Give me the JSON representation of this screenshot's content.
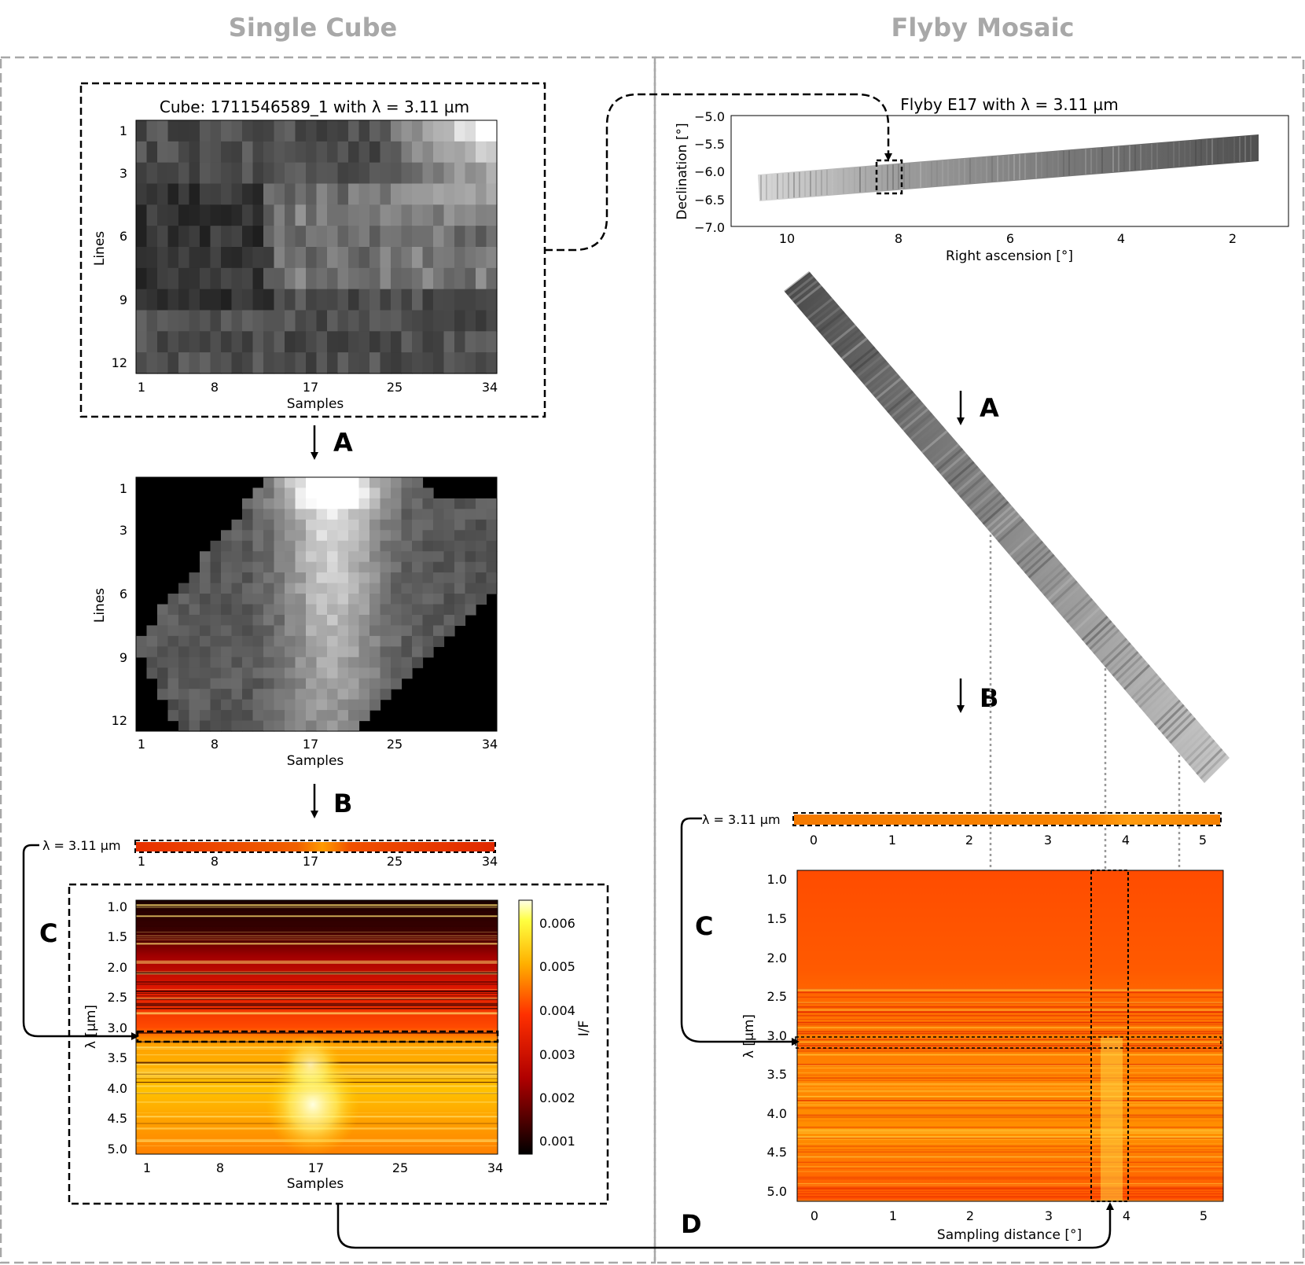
{
  "headings": {
    "single": "Single Cube",
    "flyby": "Flyby Mosaic"
  },
  "cube": {
    "title": "Cube: 1711546589_1 with λ = 3.11 µm",
    "ylabel": "Lines",
    "xlabel": "Samples",
    "lines_ticks": [
      "1",
      "3",
      "6",
      "9",
      "12"
    ],
    "samples_ticks": [
      "1",
      "8",
      "17",
      "25",
      "34"
    ]
  },
  "projected": {
    "ylabel": "Lines",
    "xlabel": "Samples",
    "lines_ticks": [
      "1",
      "3",
      "6",
      "9",
      "12"
    ],
    "samples_ticks": [
      "1",
      "8",
      "17",
      "25",
      "34"
    ]
  },
  "strip": {
    "label": "λ = 3.11 µm",
    "ticks": [
      "1",
      "8",
      "17",
      "25",
      "34"
    ]
  },
  "spectrum": {
    "ylabel": "λ [µm]",
    "xlabel": "Samples",
    "y_ticks": [
      "1.0",
      "1.5",
      "2.0",
      "2.5",
      "3.0",
      "3.5",
      "4.0",
      "4.5",
      "5.0"
    ],
    "x_ticks": [
      "1",
      "8",
      "17",
      "25",
      "34"
    ],
    "colorbar_label": "I/F",
    "colorbar_ticks": [
      "0.006",
      "0.005",
      "0.004",
      "0.003",
      "0.002",
      "0.001"
    ]
  },
  "flyby": {
    "title": "Flyby E17 with λ = 3.11 µm",
    "ylabel": "Declination [°]",
    "xlabel": "Right ascension [°]",
    "y_ticks": [
      "−5.0",
      "−5.5",
      "−6.0",
      "−6.5",
      "−7.0"
    ],
    "x_ticks": [
      "10",
      "8",
      "6",
      "4",
      "2"
    ]
  },
  "flyby_strip": {
    "label": "λ = 3.11 µm",
    "ticks": [
      "0",
      "1",
      "2",
      "3",
      "4",
      "5"
    ]
  },
  "flyby_spectrum": {
    "ylabel": "λ [µm]",
    "xlabel": "Sampling distance [°]",
    "y_ticks": [
      "1.0",
      "1.5",
      "2.0",
      "2.5",
      "3.0",
      "3.5",
      "4.0",
      "4.5",
      "5.0"
    ],
    "x_ticks": [
      "0",
      "1",
      "2",
      "3",
      "4",
      "5"
    ]
  },
  "steps": {
    "a": "A",
    "b": "B",
    "c": "C",
    "d": "D"
  },
  "colors": {
    "panel_border": "#a8a8a8",
    "gray_arrow": "#999999",
    "heat_high": "#ffffc8",
    "heat_mid": "#ff8c00",
    "heat_low": "#1a0000"
  }
}
